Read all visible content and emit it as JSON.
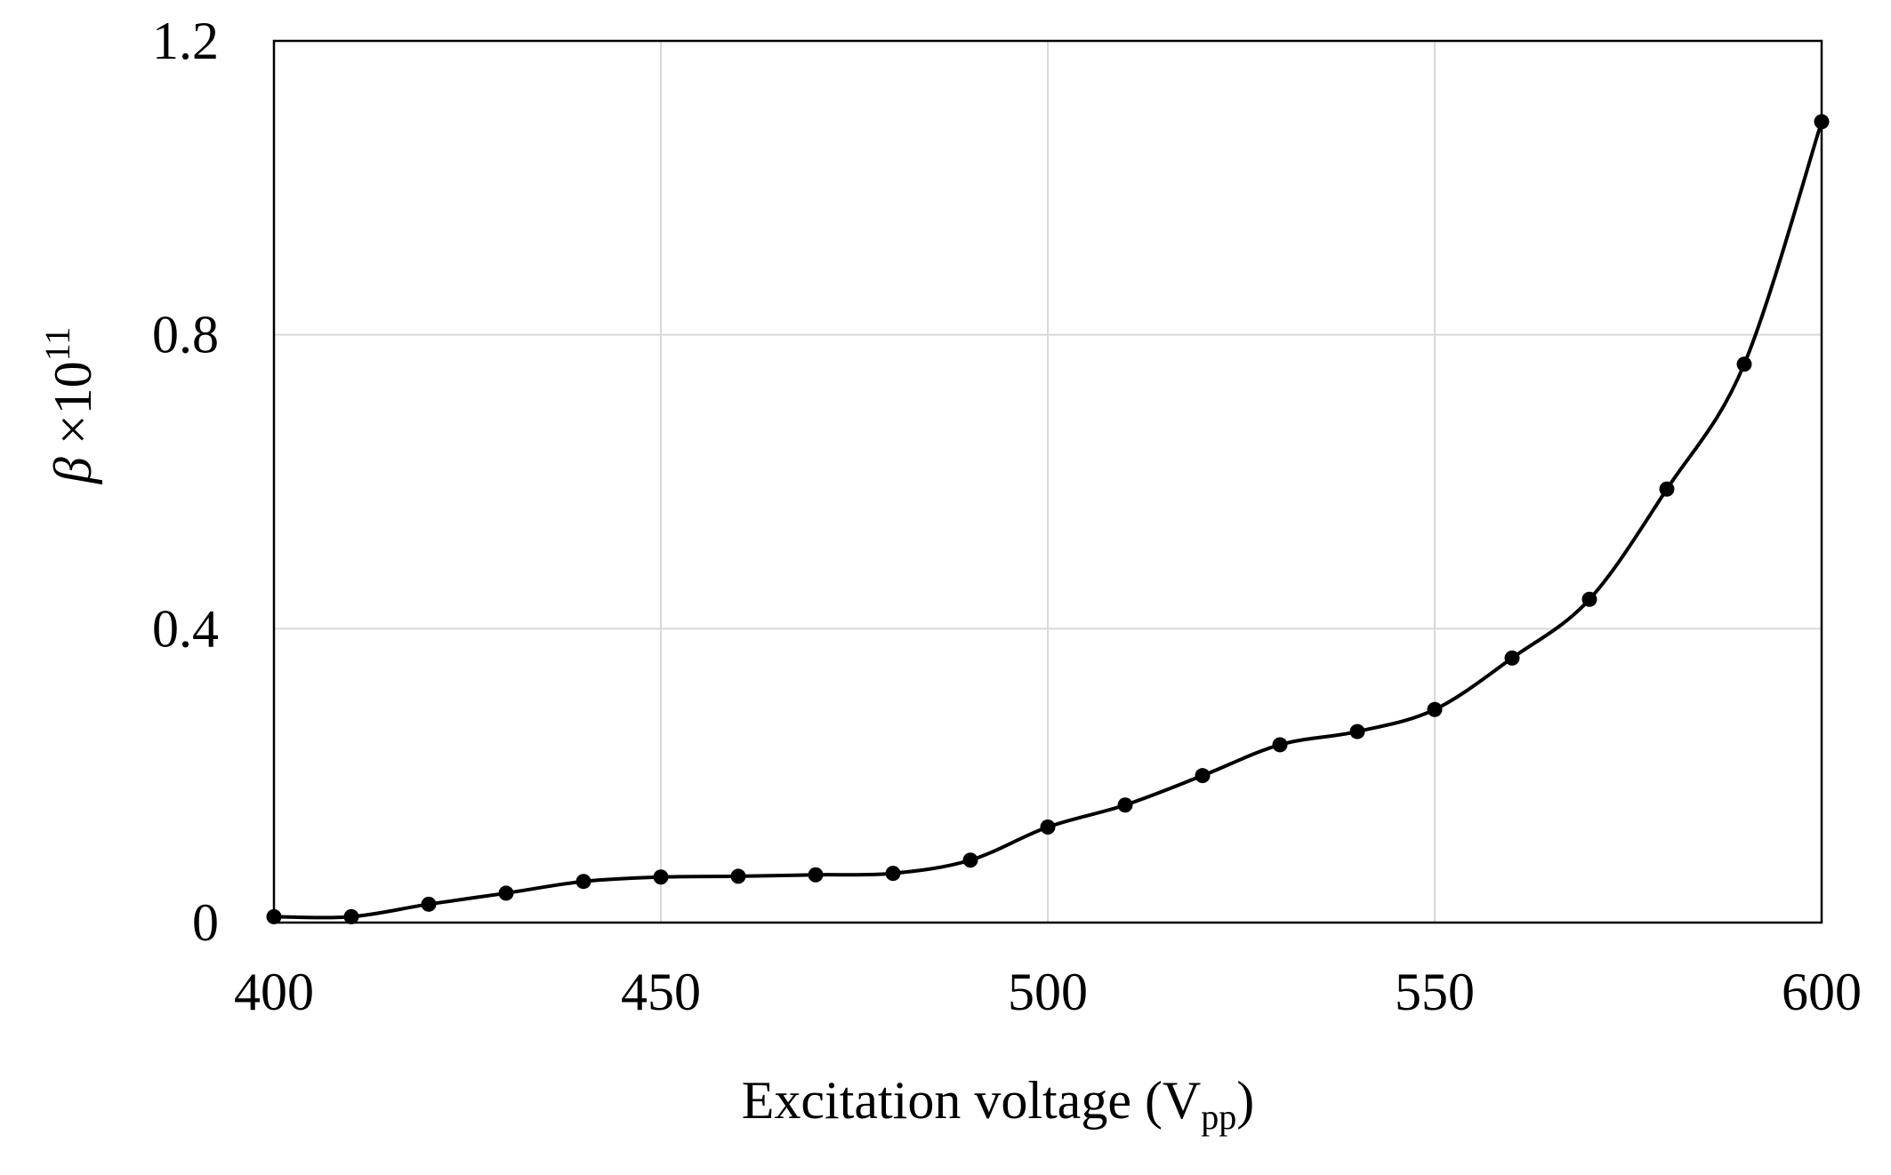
{
  "chart_data": {
    "type": "line",
    "title": "",
    "xlabel": "Excitation voltage (V",
    "xlabel_sub": "pp",
    "xlabel_close": ")",
    "ylabel_symbol": "β",
    "ylabel_times": "×10",
    "ylabel_exp": "11",
    "xlim": [
      400,
      600
    ],
    "ylim": [
      0,
      1.2
    ],
    "xticks": [
      400,
      450,
      500,
      550,
      600
    ],
    "xtick_labels": [
      "400",
      "450",
      "500",
      "550",
      "600"
    ],
    "yticks": [
      0,
      0.4,
      0.8,
      1.2
    ],
    "ytick_labels": [
      "0",
      "0.4",
      "0.8",
      "1.2"
    ],
    "grid": true,
    "legend": "none",
    "series": [
      {
        "name": "β",
        "marker": "circle",
        "smooth": true,
        "color": "#000000",
        "x": [
          400,
          410,
          420,
          430,
          440,
          450,
          460,
          470,
          480,
          490,
          500,
          510,
          520,
          530,
          540,
          550,
          560,
          570,
          580,
          590,
          600
        ],
        "y": [
          0.008,
          0.008,
          0.025,
          0.04,
          0.056,
          0.062,
          0.063,
          0.065,
          0.067,
          0.085,
          0.13,
          0.16,
          0.2,
          0.242,
          0.26,
          0.29,
          0.36,
          0.44,
          0.59,
          0.76,
          1.09
        ]
      }
    ]
  },
  "colors": {
    "grid": "#d9d9d9",
    "axis": "#000000",
    "series": "#000000"
  }
}
